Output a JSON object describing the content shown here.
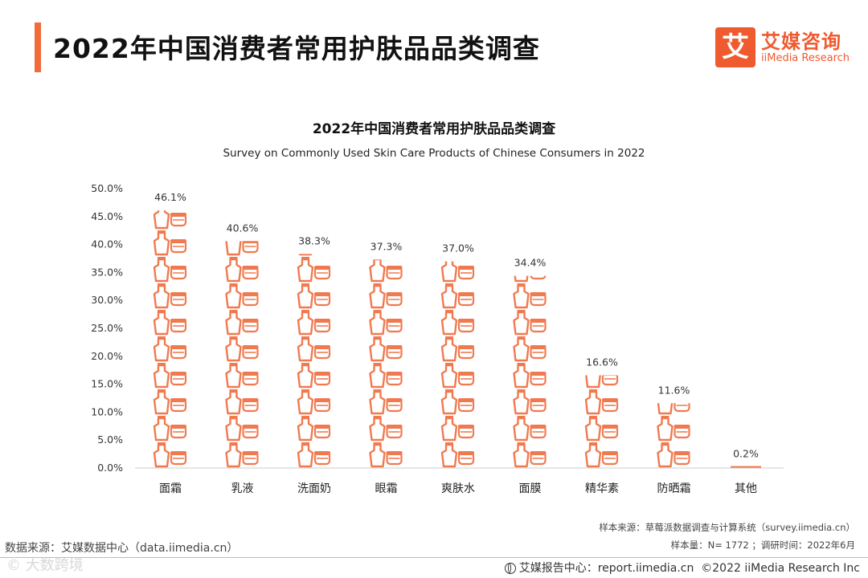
{
  "header": {
    "title": "2022年中国消费者常用护肤品品类调查"
  },
  "logo": {
    "mark": "艾",
    "name_cn": "艾媒咨询",
    "name_en": "iiMedia Research"
  },
  "colors": {
    "accent": "#f26b3a",
    "icon": "#f07a50",
    "axis_text": "#333333",
    "gridline": "#cccccc"
  },
  "chart_data": {
    "type": "bar",
    "title": "2022年中国消费者常用护肤品品类调查",
    "subtitle": "Survey on Commonly Used Skin Care Products of Chinese Consumers in 2022",
    "categories": [
      "面霜",
      "乳液",
      "洗面奶",
      "眼霜",
      "爽肤水",
      "面膜",
      "精华素",
      "防晒霜",
      "其他"
    ],
    "values": [
      46.1,
      40.6,
      38.3,
      37.3,
      37.0,
      34.4,
      16.6,
      11.6,
      0.2
    ],
    "data_labels": [
      "46.1%",
      "40.6%",
      "38.3%",
      "37.3%",
      "37.0%",
      "34.4%",
      "16.6%",
      "11.6%",
      "0.2%"
    ],
    "yticks": [
      "0.0%",
      "5.0%",
      "10.0%",
      "15.0%",
      "20.0%",
      "25.0%",
      "30.0%",
      "35.0%",
      "40.0%",
      "45.0%",
      "50.0%"
    ],
    "ylim": [
      0,
      50
    ],
    "xlabel": "",
    "ylabel": "",
    "style": "pictograph (stacked skin-care icons)",
    "grid": false
  },
  "sources": {
    "sample_source": "样本来源：草莓派数据调查与计算系统（survey.iimedia.cn）",
    "sample_size": "样本量：N= 1772 ；调研时间：2022年6月",
    "data_source": "数据来源：艾媒数据中心（data.iimedia.cn）"
  },
  "footer": {
    "report_center": "艾媒报告中心：report.iimedia.cn",
    "copyright": "©2022  iiMedia Research  Inc"
  },
  "watermark": {
    "text": "© 大数跨境"
  }
}
